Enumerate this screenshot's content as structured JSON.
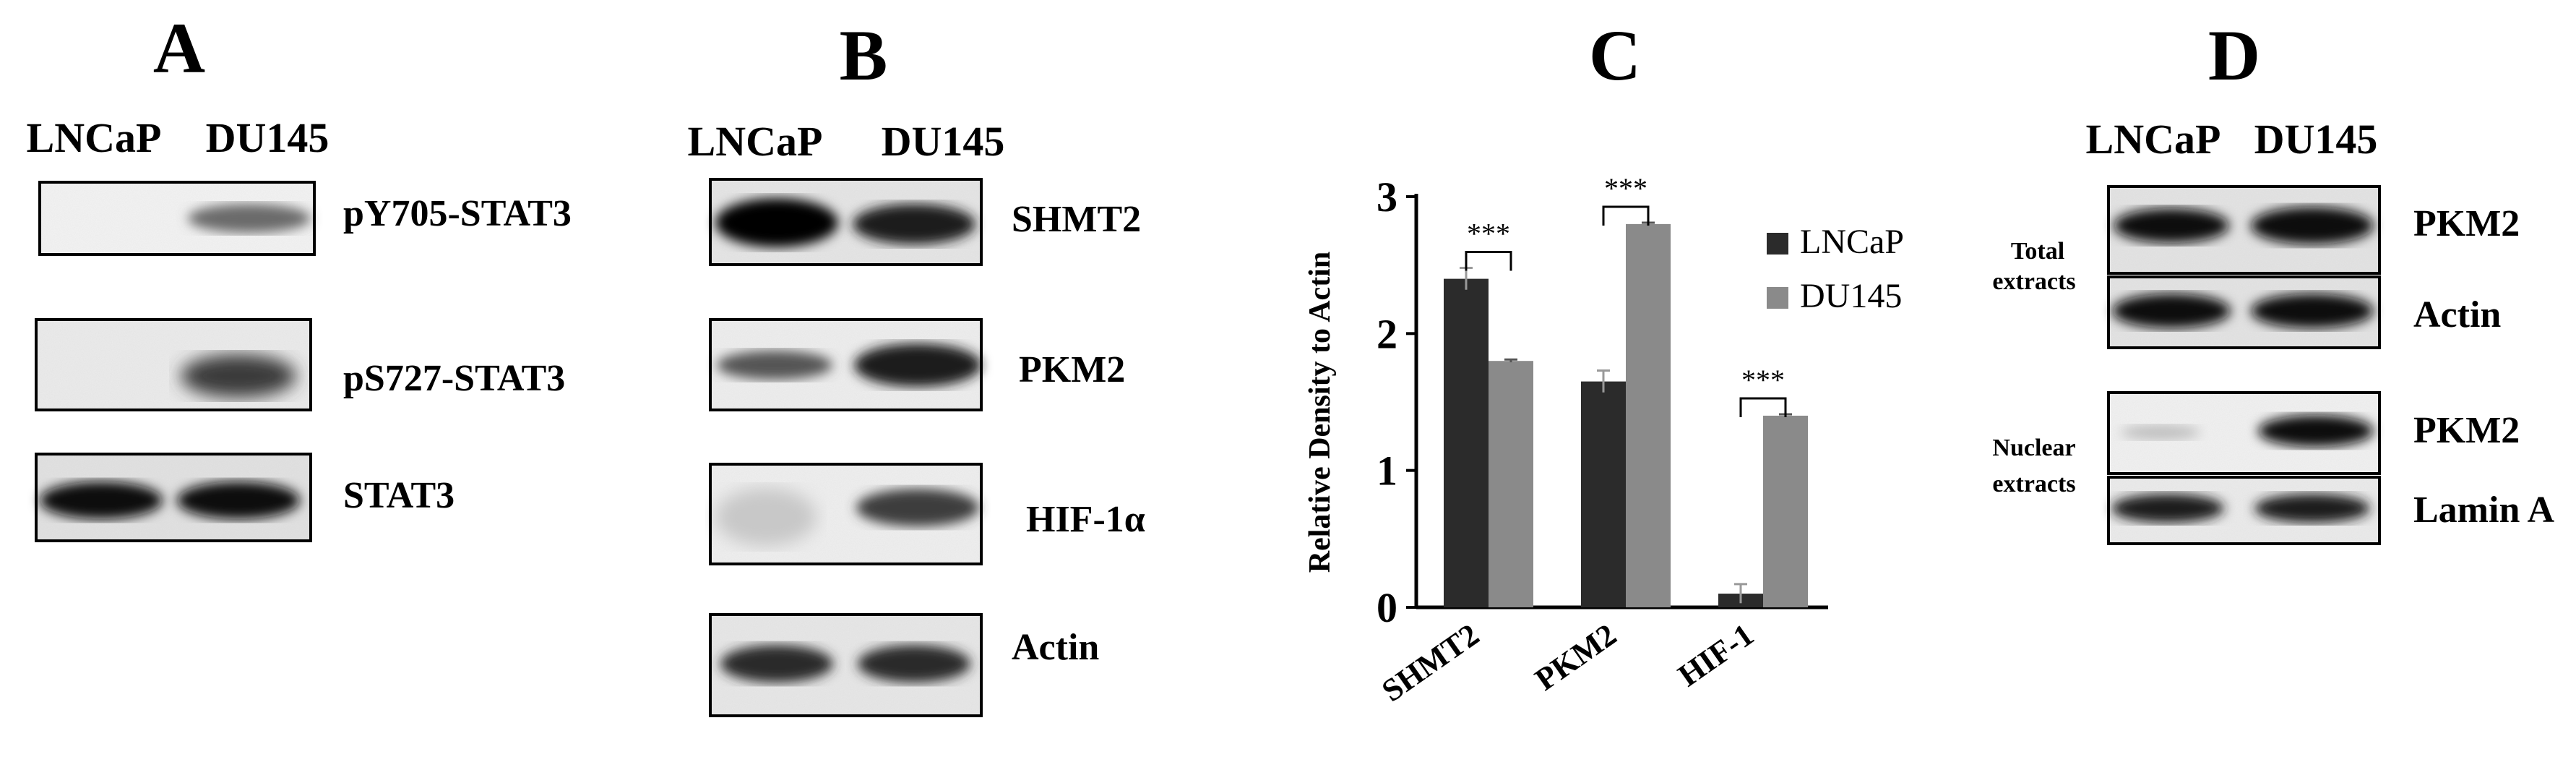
{
  "panel_a": {
    "letter": "A",
    "lanes": [
      "LNCaP",
      "DU145"
    ],
    "blots": [
      "pY705-STAT3",
      "pS727-STAT3",
      "STAT3"
    ]
  },
  "panel_b": {
    "letter": "B",
    "lanes": [
      "LNCaP",
      "DU145"
    ],
    "blots": [
      "SHMT2",
      "PKM2",
      "HIF-1α",
      "Actin"
    ]
  },
  "panel_d": {
    "letter": "D",
    "lanes": [
      "LNCaP",
      "DU145"
    ],
    "blots": [
      "PKM2",
      "Actin",
      "PKM2",
      "Lamin A"
    ],
    "groups": {
      "total_line1": "Total",
      "total_line2": "extracts",
      "nuclear_line1": "Nuclear",
      "nuclear_line2": "extracts"
    }
  },
  "chart_data": {
    "panel": "C",
    "type": "bar",
    "ylabel": "Relative Density to Actin",
    "ylim": [
      0,
      3
    ],
    "yticks": [
      "0",
      "1",
      "2",
      "3"
    ],
    "categories": [
      "SHMT2",
      "PKM2",
      "HIF-1"
    ],
    "series": [
      {
        "name": "LNCaP",
        "values": [
          2.4,
          1.65,
          0.1
        ],
        "errors": [
          0.08,
          0.08,
          0.07
        ],
        "color": "#2b2b2b"
      },
      {
        "name": "DU145",
        "values": [
          1.8,
          2.8,
          1.4
        ],
        "errors": [
          0.01,
          0.01,
          0.01
        ],
        "color": "#8a8a8a"
      }
    ],
    "significance": [
      "***",
      "***",
      "***"
    ],
    "legend_position": "top-right",
    "grid": false
  }
}
